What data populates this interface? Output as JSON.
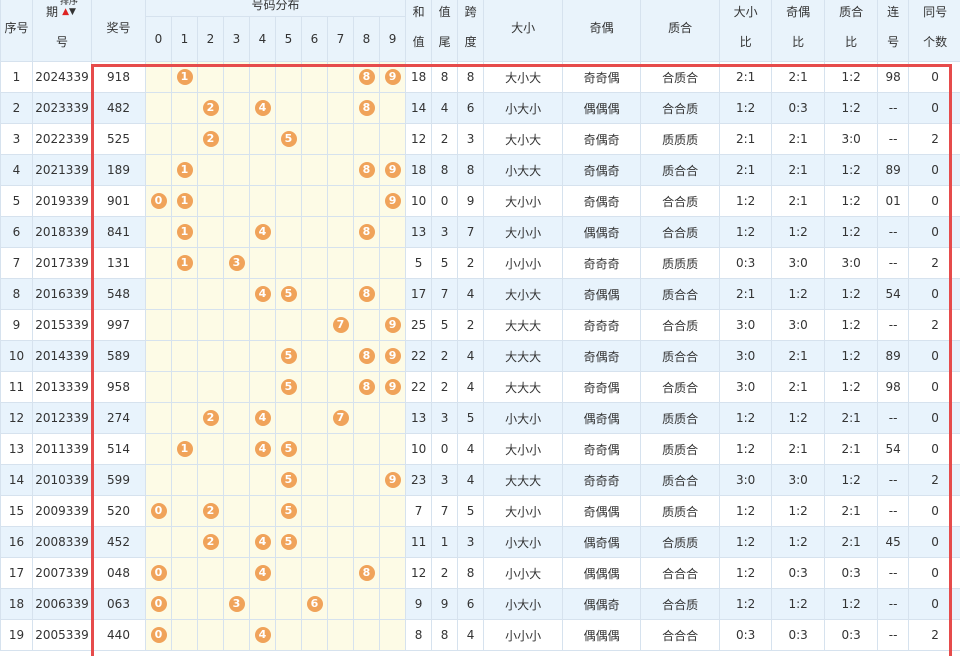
{
  "headers": {
    "idx": "序号",
    "period_a": "期",
    "period_b": "号",
    "sort_label": "排序",
    "number": "奖号",
    "distribution": "号码分布",
    "digits": [
      "0",
      "1",
      "2",
      "3",
      "4",
      "5",
      "6",
      "7",
      "8",
      "9"
    ],
    "sum_a": "和",
    "sum_b": "值",
    "tail_a": "值",
    "tail_b": "尾",
    "span_a": "跨",
    "span_b": "度",
    "size": "大小",
    "parity": "奇偶",
    "prime": "质合",
    "size_ratio_a": "大小",
    "size_ratio_b": "比",
    "parity_ratio_a": "奇偶",
    "parity_ratio_b": "比",
    "prime_ratio_a": "质合",
    "prime_ratio_b": "比",
    "consec_a": "连",
    "consec_b": "号",
    "same_a": "同号",
    "same_b": "个数"
  },
  "rows": [
    {
      "idx": "1",
      "period": "2024339",
      "number": "918",
      "balls": [
        "1",
        "8",
        "9"
      ],
      "sum": "18",
      "tail": "8",
      "span": "8",
      "size": "大小大",
      "parity": "奇奇偶",
      "prime": "合质合",
      "sr": "2:1",
      "pr": "2:1",
      "qr": "1:2",
      "consec": "98",
      "same": "0"
    },
    {
      "idx": "2",
      "period": "2023339",
      "number": "482",
      "balls": [
        "2",
        "4",
        "8"
      ],
      "sum": "14",
      "tail": "4",
      "span": "6",
      "size": "小大小",
      "parity": "偶偶偶",
      "prime": "合合质",
      "sr": "1:2",
      "pr": "0:3",
      "qr": "1:2",
      "consec": "--",
      "same": "0"
    },
    {
      "idx": "3",
      "period": "2022339",
      "number": "525",
      "balls": [
        "2",
        "5"
      ],
      "sum": "12",
      "tail": "2",
      "span": "3",
      "size": "大小大",
      "parity": "奇偶奇",
      "prime": "质质质",
      "sr": "2:1",
      "pr": "2:1",
      "qr": "3:0",
      "consec": "--",
      "same": "2"
    },
    {
      "idx": "4",
      "period": "2021339",
      "number": "189",
      "balls": [
        "1",
        "8",
        "9"
      ],
      "sum": "18",
      "tail": "8",
      "span": "8",
      "size": "小大大",
      "parity": "奇偶奇",
      "prime": "质合合",
      "sr": "2:1",
      "pr": "2:1",
      "qr": "1:2",
      "consec": "89",
      "same": "0"
    },
    {
      "idx": "5",
      "period": "2019339",
      "number": "901",
      "balls": [
        "0",
        "1",
        "9"
      ],
      "sum": "10",
      "tail": "0",
      "span": "9",
      "size": "大小小",
      "parity": "奇偶奇",
      "prime": "合合质",
      "sr": "1:2",
      "pr": "2:1",
      "qr": "1:2",
      "consec": "01",
      "same": "0"
    },
    {
      "idx": "6",
      "period": "2018339",
      "number": "841",
      "balls": [
        "1",
        "4",
        "8"
      ],
      "sum": "13",
      "tail": "3",
      "span": "7",
      "size": "大小小",
      "parity": "偶偶奇",
      "prime": "合合质",
      "sr": "1:2",
      "pr": "1:2",
      "qr": "1:2",
      "consec": "--",
      "same": "0"
    },
    {
      "idx": "7",
      "period": "2017339",
      "number": "131",
      "balls": [
        "1",
        "3"
      ],
      "sum": "5",
      "tail": "5",
      "span": "2",
      "size": "小小小",
      "parity": "奇奇奇",
      "prime": "质质质",
      "sr": "0:3",
      "pr": "3:0",
      "qr": "3:0",
      "consec": "--",
      "same": "2"
    },
    {
      "idx": "8",
      "period": "2016339",
      "number": "548",
      "balls": [
        "4",
        "5",
        "8"
      ],
      "sum": "17",
      "tail": "7",
      "span": "4",
      "size": "大小大",
      "parity": "奇偶偶",
      "prime": "质合合",
      "sr": "2:1",
      "pr": "1:2",
      "qr": "1:2",
      "consec": "54",
      "same": "0"
    },
    {
      "idx": "9",
      "period": "2015339",
      "number": "997",
      "balls": [
        "7",
        "9"
      ],
      "sum": "25",
      "tail": "5",
      "span": "2",
      "size": "大大大",
      "parity": "奇奇奇",
      "prime": "合合质",
      "sr": "3:0",
      "pr": "3:0",
      "qr": "1:2",
      "consec": "--",
      "same": "2"
    },
    {
      "idx": "10",
      "period": "2014339",
      "number": "589",
      "balls": [
        "5",
        "8",
        "9"
      ],
      "sum": "22",
      "tail": "2",
      "span": "4",
      "size": "大大大",
      "parity": "奇偶奇",
      "prime": "质合合",
      "sr": "3:0",
      "pr": "2:1",
      "qr": "1:2",
      "consec": "89",
      "same": "0"
    },
    {
      "idx": "11",
      "period": "2013339",
      "number": "958",
      "balls": [
        "5",
        "8",
        "9"
      ],
      "sum": "22",
      "tail": "2",
      "span": "4",
      "size": "大大大",
      "parity": "奇奇偶",
      "prime": "合质合",
      "sr": "3:0",
      "pr": "2:1",
      "qr": "1:2",
      "consec": "98",
      "same": "0"
    },
    {
      "idx": "12",
      "period": "2012339",
      "number": "274",
      "balls": [
        "2",
        "4",
        "7"
      ],
      "sum": "13",
      "tail": "3",
      "span": "5",
      "size": "小大小",
      "parity": "偶奇偶",
      "prime": "质质合",
      "sr": "1:2",
      "pr": "1:2",
      "qr": "2:1",
      "consec": "--",
      "same": "0"
    },
    {
      "idx": "13",
      "period": "2011339",
      "number": "514",
      "balls": [
        "1",
        "4",
        "5"
      ],
      "sum": "10",
      "tail": "0",
      "span": "4",
      "size": "大小小",
      "parity": "奇奇偶",
      "prime": "质质合",
      "sr": "1:2",
      "pr": "2:1",
      "qr": "2:1",
      "consec": "54",
      "same": "0"
    },
    {
      "idx": "14",
      "period": "2010339",
      "number": "599",
      "balls": [
        "5",
        "9"
      ],
      "sum": "23",
      "tail": "3",
      "span": "4",
      "size": "大大大",
      "parity": "奇奇奇",
      "prime": "质合合",
      "sr": "3:0",
      "pr": "3:0",
      "qr": "1:2",
      "consec": "--",
      "same": "2"
    },
    {
      "idx": "15",
      "period": "2009339",
      "number": "520",
      "balls": [
        "0",
        "2",
        "5"
      ],
      "sum": "7",
      "tail": "7",
      "span": "5",
      "size": "大小小",
      "parity": "奇偶偶",
      "prime": "质质合",
      "sr": "1:2",
      "pr": "1:2",
      "qr": "2:1",
      "consec": "--",
      "same": "0"
    },
    {
      "idx": "16",
      "period": "2008339",
      "number": "452",
      "balls": [
        "2",
        "4",
        "5"
      ],
      "sum": "11",
      "tail": "1",
      "span": "3",
      "size": "小大小",
      "parity": "偶奇偶",
      "prime": "合质质",
      "sr": "1:2",
      "pr": "1:2",
      "qr": "2:1",
      "consec": "45",
      "same": "0"
    },
    {
      "idx": "17",
      "period": "2007339",
      "number": "048",
      "balls": [
        "0",
        "4",
        "8"
      ],
      "sum": "12",
      "tail": "2",
      "span": "8",
      "size": "小小大",
      "parity": "偶偶偶",
      "prime": "合合合",
      "sr": "1:2",
      "pr": "0:3",
      "qr": "0:3",
      "consec": "--",
      "same": "0"
    },
    {
      "idx": "18",
      "period": "2006339",
      "number": "063",
      "balls": [
        "0",
        "3",
        "6"
      ],
      "sum": "9",
      "tail": "9",
      "span": "6",
      "size": "小大小",
      "parity": "偶偶奇",
      "prime": "合合质",
      "sr": "1:2",
      "pr": "1:2",
      "qr": "1:2",
      "consec": "--",
      "same": "0"
    },
    {
      "idx": "19",
      "period": "2005339",
      "number": "440",
      "balls": [
        "0",
        "4"
      ],
      "sum": "8",
      "tail": "8",
      "span": "4",
      "size": "小小小",
      "parity": "偶偶偶",
      "prime": "合合合",
      "sr": "0:3",
      "pr": "0:3",
      "qr": "0:3",
      "consec": "--",
      "same": "2"
    }
  ]
}
